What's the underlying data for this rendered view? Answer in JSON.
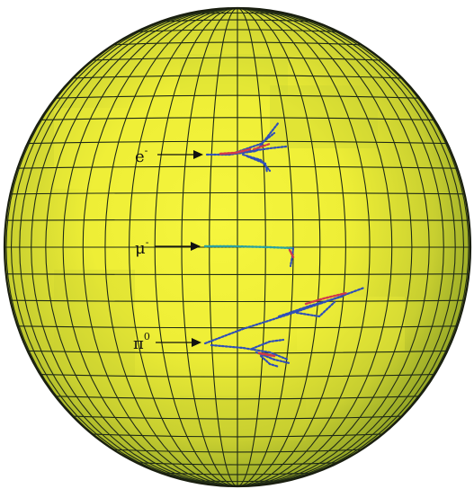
{
  "colors": {
    "sphere_light": "#f2f23a",
    "sphere_mid": "#c9d233",
    "sphere_dark": "#6e8a1f",
    "grid": "#1f2a16",
    "track_blue": "#2f4fb8",
    "track_red": "#d23a4a",
    "track_teal": "#2aa0a0"
  },
  "particles": [
    {
      "symbol": "e",
      "superscript": "-",
      "icon": "electron-shower"
    },
    {
      "symbol": "μ",
      "superscript": "-",
      "icon": "muon-track"
    },
    {
      "symbol": "π",
      "superscript": "0",
      "icon": "pion-showers"
    }
  ]
}
